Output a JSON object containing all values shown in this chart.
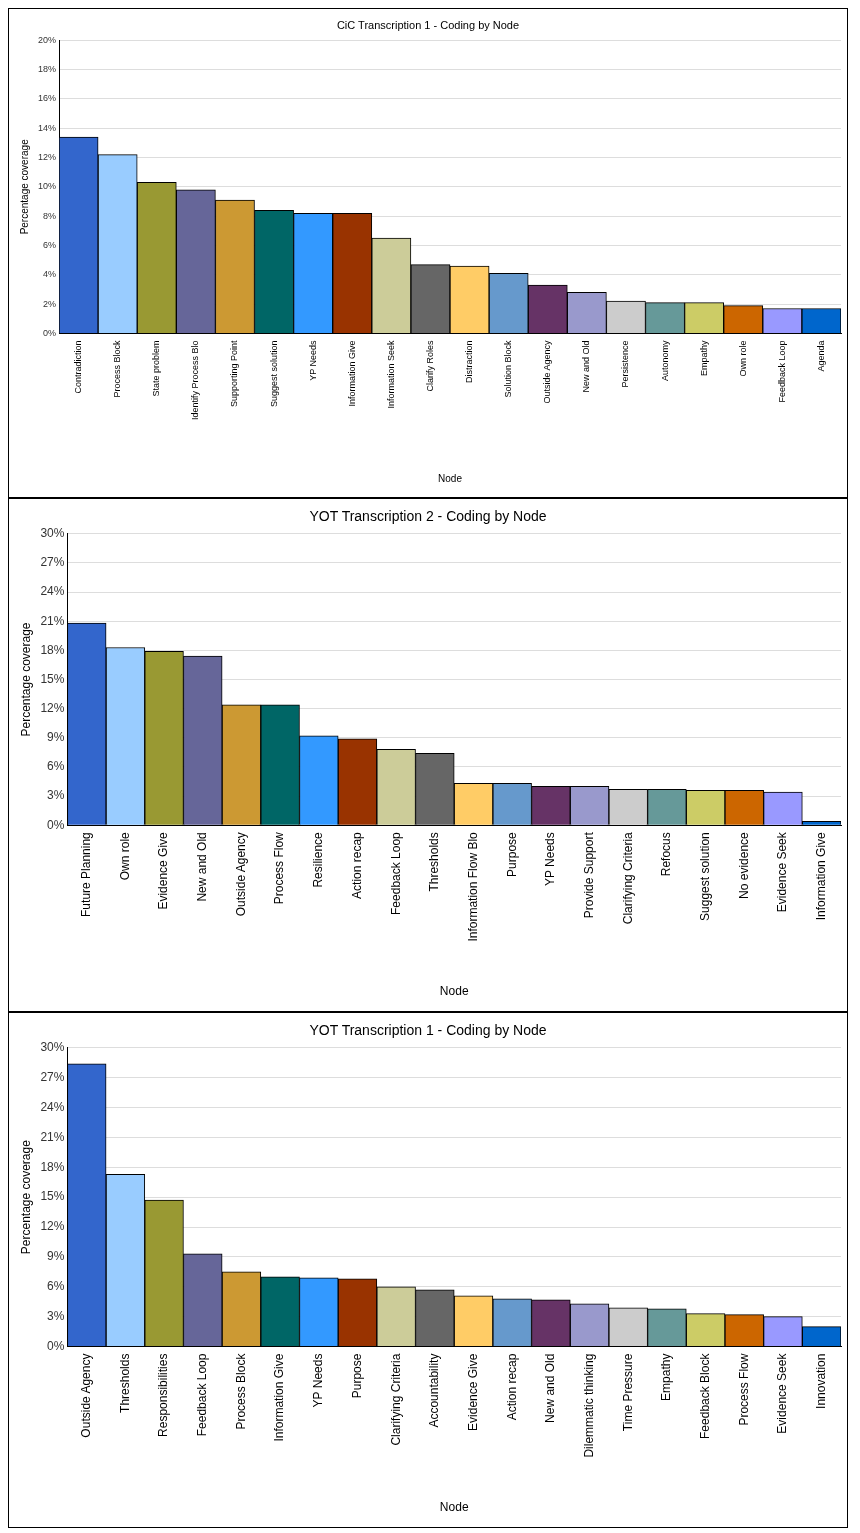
{
  "chart_data": [
    {
      "type": "bar",
      "title": "CiC Transcription 1 - Coding by Node",
      "xlabel": "Node",
      "ylabel": "Percentage coverage",
      "grid": "y",
      "legend": false,
      "categories": [
        "Contradiction",
        "Process Block",
        "State problem",
        "Identify Process Blo",
        "Supporting Point",
        "Suggest solution",
        "YP Needs",
        "Information Give",
        "Information Seek",
        "Clarify Roles",
        "Distraction",
        "Solution Block",
        "Outside Agency",
        "New and Old",
        "Persistence",
        "Autonomy",
        "Empathy",
        "Own role",
        "Feedback Loop",
        "Agenda"
      ],
      "values": [
        13.4,
        12.2,
        10.3,
        9.8,
        9.1,
        8.4,
        8.2,
        8.2,
        6.5,
        4.7,
        4.6,
        4.1,
        3.3,
        2.8,
        2.2,
        2.1,
        2.1,
        1.9,
        1.7,
        1.7
      ],
      "colors": [
        "#3366cc",
        "#99ccff",
        "#999933",
        "#666699",
        "#cc9933",
        "#006666",
        "#3399ff",
        "#993300",
        "#cccc99",
        "#666666",
        "#ffcc66",
        "#6699cc",
        "#663366",
        "#9999cc",
        "#cccccc",
        "#669999",
        "#cccc66",
        "#cc6600",
        "#9999ff",
        "#0066cc"
      ],
      "ylim": [
        0,
        20
      ],
      "yticks": [
        {
          "value": 0,
          "label": "0%"
        },
        {
          "value": 2,
          "label": "2%"
        },
        {
          "value": 4,
          "label": "4%"
        },
        {
          "value": 6,
          "label": "6%"
        },
        {
          "value": 8,
          "label": "8%"
        },
        {
          "value": 10,
          "label": "10%"
        },
        {
          "value": 12,
          "label": "12%"
        },
        {
          "value": 14,
          "label": "14%"
        },
        {
          "value": 16,
          "label": "16%"
        },
        {
          "value": 18,
          "label": "18%"
        },
        {
          "value": 20,
          "label": "20%"
        }
      ]
    },
    {
      "type": "bar",
      "title": "YOT Transcription 2 - Coding by Node",
      "xlabel": "Node",
      "ylabel": "Percentage coverage",
      "grid": "y",
      "legend": false,
      "categories": [
        "Future Planning",
        "Own role",
        "Evidence Give",
        "New and Old",
        "Outside Agency",
        "Process Flow",
        "Resilience",
        "Action recap",
        "Feedback Loop",
        "Thresholds",
        "Information Flow Blo",
        "Purpose",
        "YP Needs",
        "Provide Support",
        "Clarifying Criteria",
        "Refocus",
        "Suggest solution",
        "No evidence",
        "Evidence Seek",
        "Information Give"
      ],
      "values": [
        20.8,
        18.3,
        17.9,
        17.4,
        12.4,
        12.4,
        9.2,
        8.9,
        7.8,
        7.4,
        4.3,
        4.3,
        4.0,
        4.0,
        3.7,
        3.7,
        3.6,
        3.6,
        3.4,
        0.4
      ],
      "colors": [
        "#3366cc",
        "#99ccff",
        "#999933",
        "#666699",
        "#cc9933",
        "#006666",
        "#3399ff",
        "#993300",
        "#cccc99",
        "#666666",
        "#ffcc66",
        "#6699cc",
        "#663366",
        "#9999cc",
        "#cccccc",
        "#669999",
        "#cccc66",
        "#cc6600",
        "#9999ff",
        "#0066cc"
      ],
      "ylim": [
        0,
        30
      ],
      "yticks": [
        {
          "value": 0,
          "label": "0%"
        },
        {
          "value": 3,
          "label": "3%"
        },
        {
          "value": 6,
          "label": "6%"
        },
        {
          "value": 9,
          "label": "9%"
        },
        {
          "value": 12,
          "label": "12%"
        },
        {
          "value": 15,
          "label": "15%"
        },
        {
          "value": 18,
          "label": "18%"
        },
        {
          "value": 21,
          "label": "21%"
        },
        {
          "value": 24,
          "label": "24%"
        },
        {
          "value": 27,
          "label": "27%"
        },
        {
          "value": 30,
          "label": "30%"
        }
      ]
    },
    {
      "type": "bar",
      "title": "YOT Transcription 1 - Coding by Node",
      "xlabel": "Node",
      "ylabel": "Percentage coverage",
      "grid": "y",
      "legend": false,
      "categories": [
        "Outside Agency",
        "Thresholds",
        "Responsibilities",
        "Feedback Loop",
        "Process Block",
        "Information Give",
        "YP Needs",
        "Purpose",
        "Clarifying Criteria",
        "Accountability",
        "Evidence Give",
        "Action recap",
        "New and Old",
        "Dilemmatic thinking",
        "Time Pressure",
        "Empathy",
        "Feedback Block",
        "Process Flow",
        "Evidence Seek",
        "Innovation"
      ],
      "values": [
        28.4,
        17.3,
        14.7,
        9.3,
        7.5,
        7.0,
        6.9,
        6.8,
        6.0,
        5.7,
        5.1,
        4.8,
        4.7,
        4.3,
        3.9,
        3.8,
        3.3,
        3.2,
        3.0,
        2.0
      ],
      "colors": [
        "#3366cc",
        "#99ccff",
        "#999933",
        "#666699",
        "#cc9933",
        "#006666",
        "#3399ff",
        "#993300",
        "#cccc99",
        "#666666",
        "#ffcc66",
        "#6699cc",
        "#663366",
        "#9999cc",
        "#cccccc",
        "#669999",
        "#cccc66",
        "#cc6600",
        "#9999ff",
        "#0066cc"
      ],
      "ylim": [
        0,
        30
      ],
      "yticks": [
        {
          "value": 0,
          "label": "0%"
        },
        {
          "value": 3,
          "label": "3%"
        },
        {
          "value": 6,
          "label": "6%"
        },
        {
          "value": 9,
          "label": "9%"
        },
        {
          "value": 12,
          "label": "12%"
        },
        {
          "value": 15,
          "label": "15%"
        },
        {
          "value": 18,
          "label": "18%"
        },
        {
          "value": 21,
          "label": "21%"
        },
        {
          "value": 24,
          "label": "24%"
        },
        {
          "value": 27,
          "label": "27%"
        },
        {
          "value": 30,
          "label": "30%"
        }
      ]
    }
  ]
}
